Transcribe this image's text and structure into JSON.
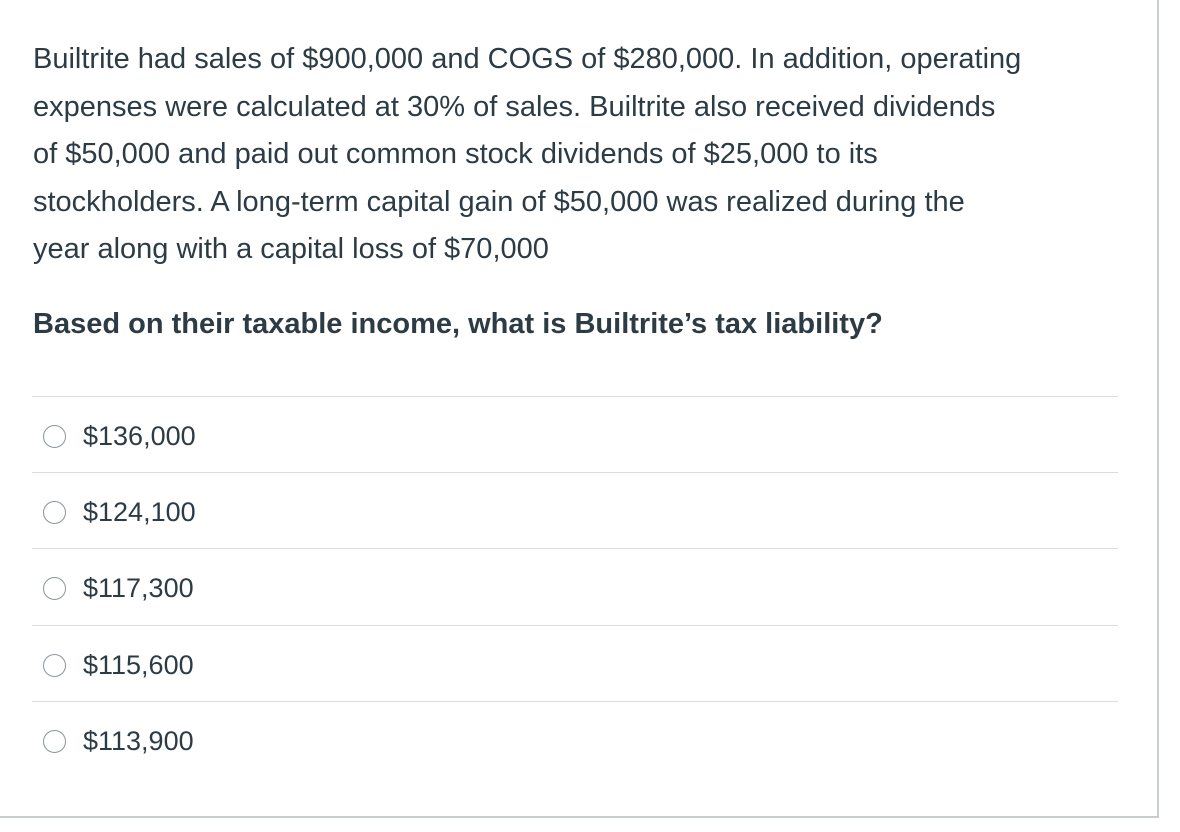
{
  "question": {
    "lines": [
      "Builtrite had sales of $900,000 and COGS of $280,000.  In addition, operating",
      "expenses were calculated at 30% of sales.  Builtrite also received dividends",
      "of $50,000 and paid out common stock dividends of $25,000 to its",
      "stockholders.  A long-term capital gain of $50,000 was realized during the",
      "year along with a capital loss of $70,000"
    ],
    "prompt": "Based on their taxable income, what is Builtrite’s tax liability?"
  },
  "answers": [
    {
      "label": "$136,000",
      "selected": false
    },
    {
      "label": "$124,100",
      "selected": false
    },
    {
      "label": "$117,300",
      "selected": false
    },
    {
      "label": "$115,600",
      "selected": false
    },
    {
      "label": "$113,900",
      "selected": false
    }
  ],
  "colors": {
    "text": "#2d3b45",
    "divider": "#d8dde0",
    "radio_border": "#8a959c",
    "card_border": "#c7cdd1"
  }
}
